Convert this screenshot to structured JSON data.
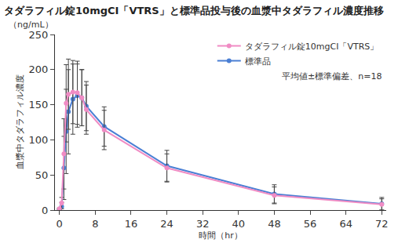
{
  "chart_data": {
    "type": "line",
    "title": "タダラフィル錠10mgCI「VTRS」と標準品投与後の血漿中タダラフィル濃度推移",
    "x_label": "時間（hr）",
    "y_label": "血漿中タダラフィル濃度",
    "y_unit": "（ng/mL）",
    "annotations": [
      "平均値±標準偏差、n=18"
    ],
    "x": [
      0,
      0.5,
      1,
      1.5,
      2,
      3,
      4,
      5,
      6,
      10,
      24,
      48,
      72
    ],
    "series": [
      {
        "name": "タダラフィル錠10mgCI「VTRS」",
        "color": "#f08cc4",
        "marker": "circle",
        "values": [
          2,
          10,
          80,
          152,
          165,
          168,
          167,
          160,
          143,
          114,
          60,
          21,
          8
        ],
        "errors": [
          1,
          8,
          50,
          55,
          50,
          45,
          45,
          40,
          35,
          28,
          20,
          12,
          8
        ]
      },
      {
        "name": "標準品",
        "color": "#4a7fd4",
        "marker": "circle",
        "values": [
          1,
          5,
          60,
          112,
          140,
          158,
          163,
          160,
          148,
          119,
          63,
          23,
          9
        ],
        "errors": [
          1,
          6,
          45,
          60,
          60,
          50,
          45,
          40,
          35,
          28,
          22,
          13,
          9
        ]
      }
    ],
    "xlim": [
      -1,
      73
    ],
    "xticks": [
      0,
      8,
      16,
      24,
      32,
      40,
      48,
      56,
      64,
      72
    ],
    "ylim": [
      0,
      250
    ],
    "yticks": [
      0,
      50,
      100,
      150,
      200,
      250
    ],
    "legend": "upper right",
    "grid": false
  }
}
